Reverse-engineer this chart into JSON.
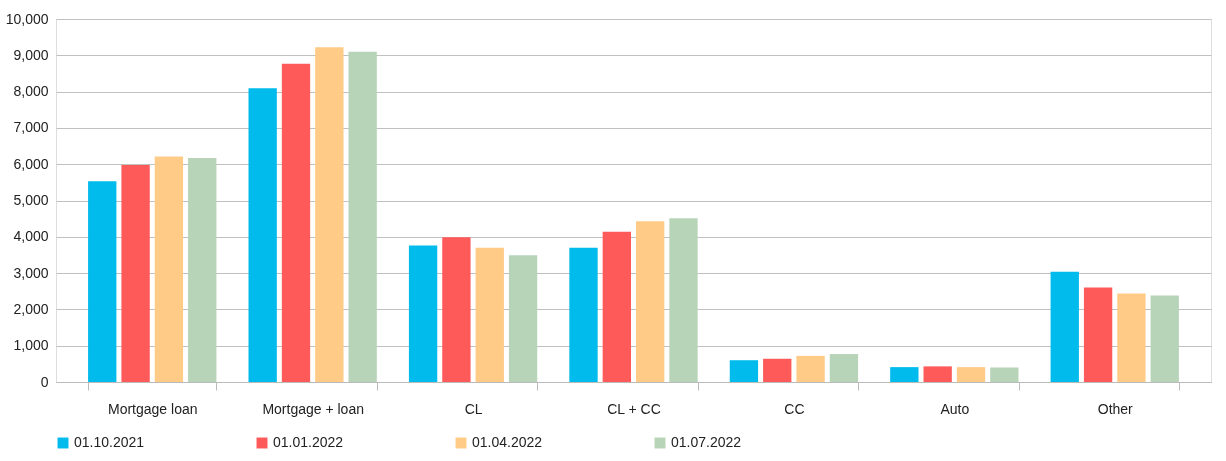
{
  "chart_data": {
    "type": "bar",
    "categories": [
      "Mortgage loan",
      "Mortgage + loan",
      "CL",
      "CL + CC",
      "CC",
      "Auto",
      "Other"
    ],
    "series": [
      {
        "name": "01.10.2021",
        "color": "#00bbec",
        "values": [
          5530,
          8090,
          3760,
          3700,
          600,
          410,
          3040
        ]
      },
      {
        "name": "01.01.2022",
        "color": "#ff5a5a",
        "values": [
          5980,
          8770,
          3990,
          4140,
          640,
          430,
          2600
        ]
      },
      {
        "name": "01.04.2022",
        "color": "#ffcb87",
        "values": [
          6210,
          9220,
          3700,
          4430,
          720,
          410,
          2440
        ]
      },
      {
        "name": "01.07.2022",
        "color": "#b8d4b8",
        "values": [
          6170,
          9100,
          3490,
          4510,
          770,
          400,
          2380
        ]
      }
    ],
    "ylim": [
      0,
      10000
    ],
    "yticks": [
      {
        "value": 0,
        "label": "0"
      },
      {
        "value": 1000,
        "label": "1,000"
      },
      {
        "value": 2000,
        "label": "2,000"
      },
      {
        "value": 3000,
        "label": "3,000"
      },
      {
        "value": 4000,
        "label": "4,000"
      },
      {
        "value": 5000,
        "label": "5,000"
      },
      {
        "value": 6000,
        "label": "6,000"
      },
      {
        "value": 7000,
        "label": "7,000"
      },
      {
        "value": 8000,
        "label": "8,000"
      },
      {
        "value": 9000,
        "label": "9,000"
      },
      {
        "value": 10000,
        "label": "10,000"
      }
    ],
    "grid": "y",
    "legend": "bottom"
  }
}
